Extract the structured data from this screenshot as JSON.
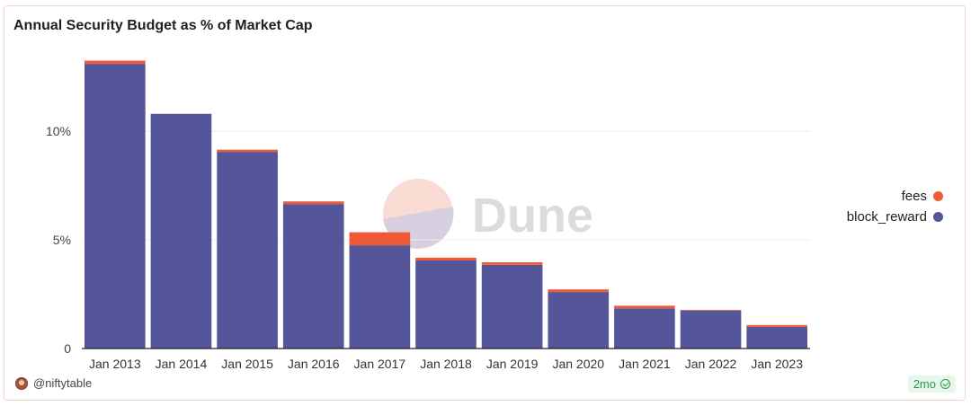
{
  "title": "Annual Security Budget as % of Market Cap",
  "watermark": "Dune",
  "author": "@niftytable",
  "freshness": "2mo",
  "colors": {
    "fees": "#ee5a35",
    "block_reward": "#55559a",
    "watermark_text": "#dcdcdc",
    "watermark_circle": "#f6cfc4"
  },
  "chart_data": {
    "type": "bar",
    "stacked": true,
    "categories": [
      "Jan 2013",
      "Jan 2014",
      "Jan 2015",
      "Jan 2016",
      "Jan 2017",
      "Jan 2018",
      "Jan 2019",
      "Jan 2020",
      "Jan 2021",
      "Jan 2022",
      "Jan 2023"
    ],
    "series": [
      {
        "name": "block_reward",
        "values": [
          13.1,
          10.8,
          9.05,
          6.65,
          4.75,
          4.05,
          3.85,
          2.6,
          1.85,
          1.75,
          1.0
        ]
      },
      {
        "name": "fees",
        "values": [
          0.15,
          0.0,
          0.1,
          0.12,
          0.6,
          0.13,
          0.12,
          0.12,
          0.12,
          0.03,
          0.08
        ]
      }
    ],
    "yticks": [
      {
        "value": 0,
        "label": "0"
      },
      {
        "value": 5,
        "label": "5%"
      },
      {
        "value": 10,
        "label": "10%"
      }
    ],
    "ylim": [
      0,
      13.6
    ],
    "grid": true,
    "legend_position": "right"
  }
}
